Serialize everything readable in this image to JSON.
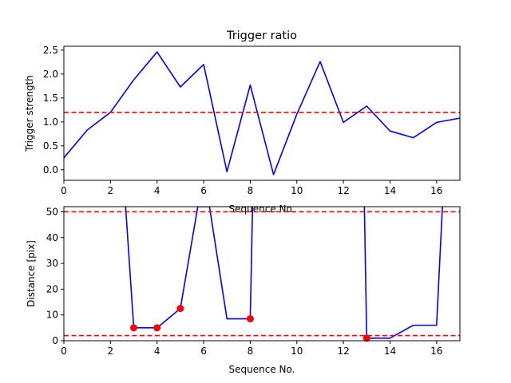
{
  "chart_data": [
    {
      "type": "line",
      "title": "Trigger ratio",
      "xlabel": "Sequence No.",
      "ylabel": "Trigger strength",
      "xlim": [
        0,
        17
      ],
      "ylim": [
        -0.22,
        2.58
      ],
      "xticks": [
        "0",
        "2",
        "4",
        "6",
        "8",
        "10",
        "12",
        "14",
        "16"
      ],
      "yticks": [
        "0.0",
        "0.5",
        "1.0",
        "1.5",
        "2.0",
        "2.5"
      ],
      "grid": false,
      "series": [
        {
          "color": "#0000ff",
          "x": [
            0,
            1,
            2,
            3,
            4,
            5,
            6,
            7,
            8,
            9,
            10,
            11,
            12,
            13,
            14,
            15,
            16,
            17
          ],
          "y": [
            0.25,
            0.83,
            1.2,
            1.88,
            2.46,
            1.73,
            2.2,
            -0.04,
            1.77,
            -0.1,
            1.16,
            2.26,
            0.99,
            1.33,
            0.81,
            0.67,
            0.99,
            1.08
          ]
        }
      ],
      "hlines": [
        {
          "y": 1.2,
          "color": "#ff0000",
          "style": "dashed"
        }
      ]
    },
    {
      "type": "line",
      "title": "",
      "xlabel": "Sequence No.",
      "ylabel": "Distance [pix]",
      "xlim": [
        0,
        17
      ],
      "ylim": [
        0,
        52
      ],
      "xticks": [
        "0",
        "2",
        "4",
        "6",
        "8",
        "10",
        "12",
        "14",
        "16"
      ],
      "yticks": [
        "0",
        "10",
        "20",
        "30",
        "40",
        "50"
      ],
      "grid": false,
      "series": [
        {
          "color": "#0000ff",
          "x": [
            2.65,
            3,
            4,
            5,
            5.75,
            6.25,
            7,
            8,
            8.1
          ],
          "y": [
            52,
            5,
            5,
            12.5,
            52,
            52,
            8.5,
            8.5,
            52
          ]
        },
        {
          "color": "#0000ff",
          "x": [
            12.9,
            13,
            14,
            15,
            16,
            16.25
          ],
          "y": [
            52,
            1,
            1,
            6,
            6,
            52
          ]
        }
      ],
      "markers": {
        "color": "#ff0000",
        "x": [
          3,
          4,
          5,
          8,
          13
        ],
        "y": [
          5,
          5,
          12.5,
          8.5,
          1
        ]
      },
      "hlines": [
        {
          "y": 50,
          "color": "#ff0000",
          "style": "dashed"
        },
        {
          "y": 2,
          "color": "#ff0000",
          "style": "dashed"
        }
      ]
    }
  ]
}
